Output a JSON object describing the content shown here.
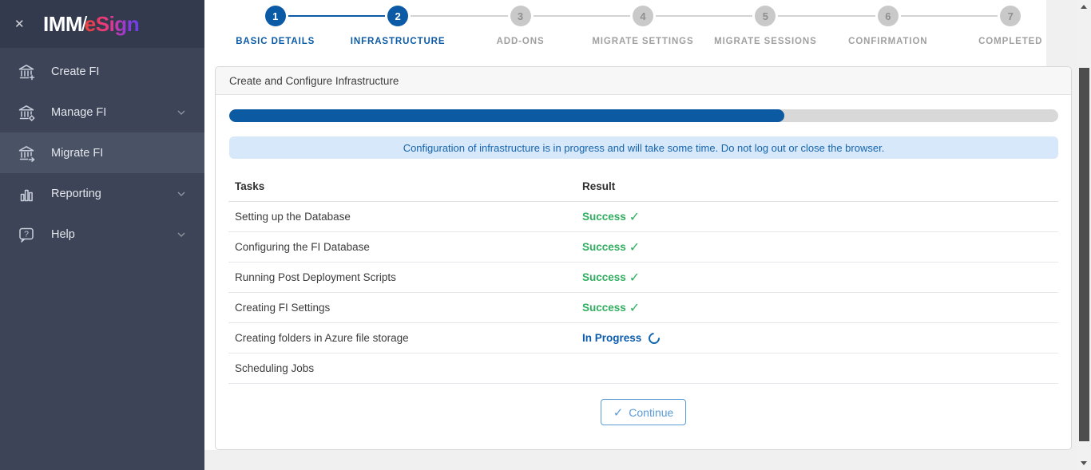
{
  "glyphs": {
    "close": "✕",
    "check": "✓"
  },
  "colors": {
    "accent_blue": "#0b5aa5",
    "success_green": "#2fae5f",
    "in_progress_blue": "#0b5bad",
    "banner_bg": "#d7e8fb",
    "sidebar_bg": "#3d4457",
    "logo_gradient_start": "#ef4136",
    "logo_gradient_end": "#6d3ef0"
  },
  "sidebar": {
    "logo": {
      "imm": "IMM",
      "slash": "/",
      "esign": "eSign"
    },
    "items": [
      {
        "label": "Create FI",
        "icon": "bank-plus-icon",
        "expandable": false,
        "active": false
      },
      {
        "label": "Manage FI",
        "icon": "bank-gear-icon",
        "expandable": true,
        "active": false
      },
      {
        "label": "Migrate FI",
        "icon": "bank-arrow-icon",
        "expandable": false,
        "active": true
      },
      {
        "label": "Reporting",
        "icon": "bar-chart-icon",
        "expandable": true,
        "active": false
      },
      {
        "label": "Help",
        "icon": "help-bubble-icon",
        "expandable": true,
        "active": false
      }
    ]
  },
  "stepper": {
    "steps": [
      {
        "number": "1",
        "label": "BASIC DETAILS",
        "state": "complete"
      },
      {
        "number": "2",
        "label": "INFRASTRUCTURE",
        "state": "active"
      },
      {
        "number": "3",
        "label": "ADD-ONS",
        "state": "pending"
      },
      {
        "number": "4",
        "label": "MIGRATE SETTINGS",
        "state": "pending"
      },
      {
        "number": "5",
        "label": "MIGRATE SESSIONS",
        "state": "pending"
      },
      {
        "number": "6",
        "label": "CONFIRMATION",
        "state": "pending"
      },
      {
        "number": "7",
        "label": "COMPLETED",
        "state": "pending"
      }
    ]
  },
  "panel": {
    "title": "Create and Configure Infrastructure",
    "progress_percent": 67,
    "banner": "Configuration of infrastructure is in progress and will take some time. Do not log out or close the browser.",
    "table": {
      "columns": {
        "tasks": "Tasks",
        "result": "Result"
      },
      "rows": [
        {
          "task": "Setting up the Database",
          "result": "Success",
          "status": "success"
        },
        {
          "task": "Configuring the FI Database",
          "result": "Success",
          "status": "success"
        },
        {
          "task": "Running Post Deployment Scripts",
          "result": "Success",
          "status": "success"
        },
        {
          "task": "Creating FI Settings",
          "result": "Success",
          "status": "success"
        },
        {
          "task": "Creating folders in Azure file storage",
          "result": "In Progress",
          "status": "in-progress"
        },
        {
          "task": "Scheduling Jobs",
          "result": "",
          "status": "pending"
        }
      ]
    },
    "continue_label": "Continue"
  }
}
